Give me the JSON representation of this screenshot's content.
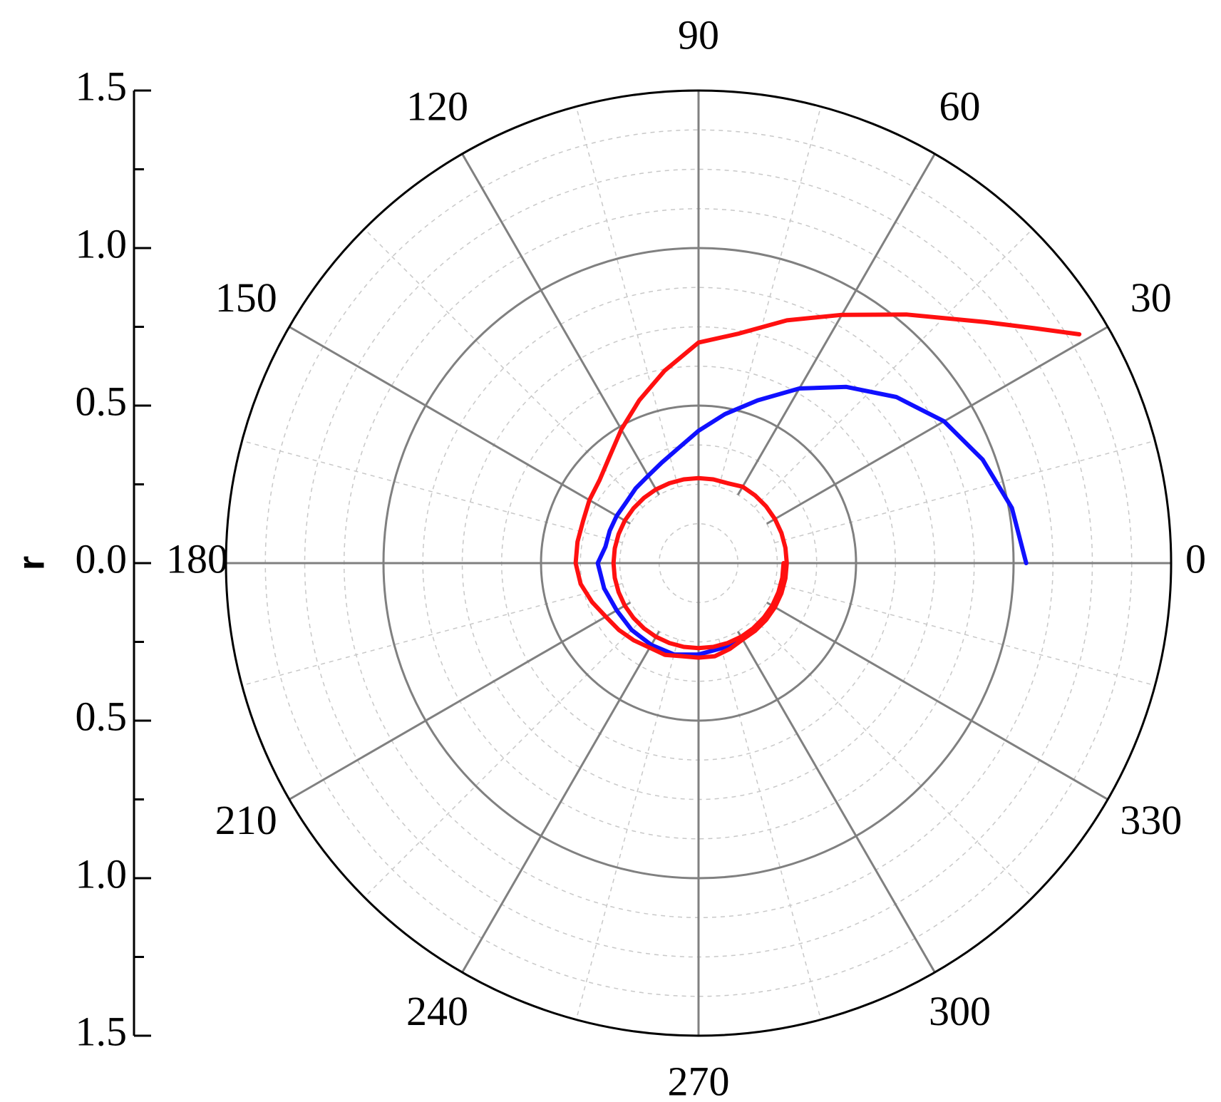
{
  "chart_data": {
    "type": "line",
    "subtype": "polar",
    "title": "",
    "radial_axis": {
      "label": "r",
      "range": [
        0,
        1.5
      ],
      "major_ticks": [
        0,
        0.5,
        1.0,
        1.5
      ],
      "tick_labels_top": [
        "1.5",
        "1.0",
        "0.5",
        "0.0"
      ],
      "tick_labels_bottom": [
        "0.5",
        "1.0",
        "1.5"
      ],
      "major_grid": true,
      "minor_grid": true
    },
    "angular_axis": {
      "unit": "degrees",
      "ticks": [
        0,
        30,
        60,
        90,
        120,
        150,
        180,
        210,
        240,
        270,
        300,
        330
      ],
      "tick_labels": [
        "0",
        "30",
        "60",
        "90",
        "120",
        "150",
        "180",
        "210",
        "240",
        "270",
        "300",
        "330"
      ],
      "direction": "counterclockwise",
      "zero_location": "right",
      "minor_grid_every_deg": 15
    },
    "legend": "none",
    "series": [
      {
        "color": "#1010ff",
        "points": [
          [
            0,
            1.04
          ],
          [
            10,
            1.01
          ],
          [
            20,
            0.96
          ],
          [
            30,
            0.9
          ],
          [
            40,
            0.82
          ],
          [
            50,
            0.73
          ],
          [
            60,
            0.64
          ],
          [
            70,
            0.55
          ],
          [
            80,
            0.48
          ],
          [
            90,
            0.42
          ],
          [
            100,
            0.37
          ],
          [
            110,
            0.34
          ],
          [
            120,
            0.32
          ],
          [
            130,
            0.31
          ],
          [
            140,
            0.3
          ],
          [
            150,
            0.3
          ],
          [
            160,
            0.3
          ],
          [
            170,
            0.3
          ],
          [
            180,
            0.32
          ],
          [
            195,
            0.31
          ],
          [
            210,
            0.3
          ],
          [
            225,
            0.3
          ],
          [
            240,
            0.3
          ],
          [
            255,
            0.3
          ],
          [
            270,
            0.29
          ],
          [
            285,
            0.28
          ],
          [
            300,
            0.28
          ],
          [
            315,
            0.27
          ],
          [
            320,
            0.27
          ]
        ]
      },
      {
        "color": "#ff1010",
        "points": [
          [
            31,
            1.41
          ],
          [
            35,
            1.3
          ],
          [
            40,
            1.19
          ],
          [
            50,
            1.03
          ],
          [
            60,
            0.91
          ],
          [
            70,
            0.82
          ],
          [
            80,
            0.74
          ],
          [
            90,
            0.7
          ],
          [
            100,
            0.62
          ],
          [
            110,
            0.55
          ],
          [
            120,
            0.49
          ],
          [
            130,
            0.44
          ],
          [
            140,
            0.41
          ],
          [
            150,
            0.4
          ],
          [
            160,
            0.39
          ],
          [
            170,
            0.39
          ],
          [
            180,
            0.39
          ],
          [
            190,
            0.38
          ],
          [
            200,
            0.36
          ],
          [
            210,
            0.34
          ],
          [
            220,
            0.33
          ],
          [
            230,
            0.32
          ],
          [
            240,
            0.31
          ],
          [
            250,
            0.31
          ],
          [
            260,
            0.3
          ],
          [
            270,
            0.3
          ],
          [
            280,
            0.3
          ],
          [
            290,
            0.29
          ],
          [
            300,
            0.28
          ],
          [
            310,
            0.28
          ],
          [
            320,
            0.28
          ],
          [
            330,
            0.28
          ],
          [
            340,
            0.28
          ],
          [
            350,
            0.28
          ],
          [
            360,
            0.28
          ],
          [
            370,
            0.28
          ],
          [
            380,
            0.28
          ],
          [
            390,
            0.28
          ],
          [
            400,
            0.28
          ],
          [
            410,
            0.28
          ],
          [
            420,
            0.28
          ],
          [
            430,
            0.27
          ],
          [
            440,
            0.27
          ],
          [
            450,
            0.27
          ],
          [
            460,
            0.27
          ],
          [
            470,
            0.27
          ],
          [
            480,
            0.27
          ],
          [
            490,
            0.27
          ],
          [
            500,
            0.27
          ],
          [
            510,
            0.27
          ],
          [
            520,
            0.27
          ],
          [
            530,
            0.27
          ],
          [
            540,
            0.27
          ],
          [
            550,
            0.27
          ],
          [
            560,
            0.27
          ],
          [
            570,
            0.27
          ],
          [
            580,
            0.27
          ],
          [
            590,
            0.27
          ],
          [
            600,
            0.27
          ],
          [
            610,
            0.27
          ],
          [
            620,
            0.27
          ],
          [
            630,
            0.27
          ],
          [
            640,
            0.27
          ],
          [
            650,
            0.27
          ],
          [
            660,
            0.27
          ],
          [
            670,
            0.27
          ],
          [
            680,
            0.27
          ],
          [
            690,
            0.27
          ],
          [
            700,
            0.27
          ],
          [
            710,
            0.27
          ],
          [
            720,
            0.27
          ]
        ]
      }
    ]
  }
}
